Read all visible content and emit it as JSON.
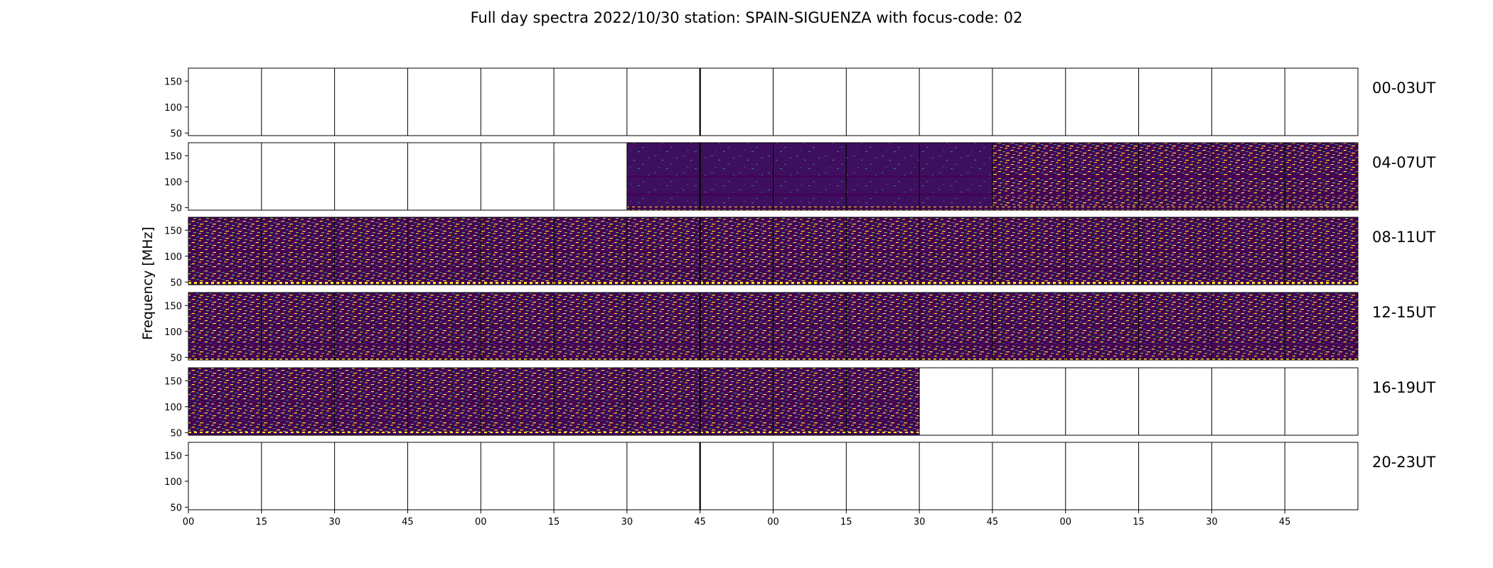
{
  "chart_data": {
    "type": "heatmap",
    "title": "Full day spectra 2022/10/30 station: SPAIN-SIGUENZA with focus-code: 02",
    "ylabel": "Frequency [MHz]",
    "xlabel": "",
    "ylim": [
      45,
      175
    ],
    "y_ticks": [
      "150",
      "100",
      "50"
    ],
    "y_tick_values": [
      150,
      100,
      50
    ],
    "x_tick_labels": [
      "00",
      "15",
      "30",
      "45",
      "00",
      "15",
      "30",
      "45",
      "00",
      "15",
      "30",
      "45",
      "00",
      "15",
      "30",
      "45"
    ],
    "panels_per_row": 16,
    "panel_minutes": 15,
    "colormap": [
      "#440154",
      "#3b528b",
      "#21918c",
      "#5ec962",
      "#fde725"
    ],
    "rows": [
      {
        "label": "00-03UT",
        "filled": [
          0,
          0,
          0,
          0,
          0,
          0,
          0,
          0,
          0,
          0,
          0,
          0,
          0,
          0,
          0,
          0
        ]
      },
      {
        "label": "04-07UT",
        "filled": [
          0,
          0,
          0,
          0,
          0,
          0,
          1,
          1,
          1,
          1,
          1,
          2,
          2,
          2,
          2,
          2
        ]
      },
      {
        "label": "08-11UT",
        "filled": [
          2,
          2,
          2,
          2,
          2,
          2,
          2,
          2,
          2,
          2,
          2,
          2,
          2,
          2,
          2,
          2
        ]
      },
      {
        "label": "12-15UT",
        "filled": [
          2,
          2,
          2,
          2,
          2,
          2,
          2,
          2,
          2,
          2,
          2,
          2,
          2,
          2,
          2,
          2
        ]
      },
      {
        "label": "16-19UT",
        "filled": [
          2,
          2,
          2,
          2,
          2,
          2,
          2,
          2,
          2,
          2,
          0,
          0,
          0,
          0,
          0,
          0
        ]
      },
      {
        "label": "20-23UT",
        "filled": [
          0,
          0,
          0,
          0,
          0,
          0,
          0,
          0,
          0,
          0,
          0,
          0,
          0,
          0,
          0,
          0
        ]
      }
    ]
  }
}
